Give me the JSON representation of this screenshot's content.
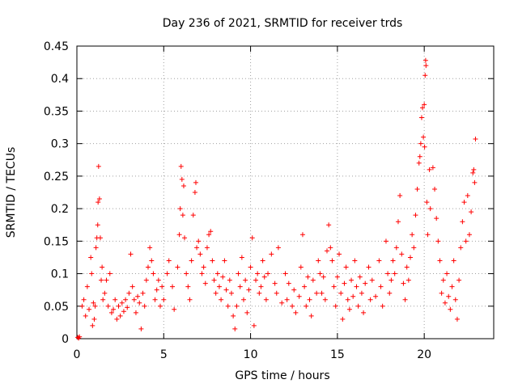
{
  "chart_data": {
    "type": "scatter",
    "title": "Day 236 of 2021, SRMTID for receiver trds",
    "xlabel": "GPS time / hours",
    "ylabel": "SRMTID / TECUs",
    "xlim": [
      0,
      24
    ],
    "ylim": [
      0,
      0.45
    ],
    "grid": true,
    "x_ticks": [
      "0",
      "5",
      "10",
      "15",
      "20"
    ],
    "y_ticks": [
      "0",
      "0.05",
      "0.1",
      "0.15",
      "0.2",
      "0.25",
      "0.3",
      "0.35",
      "0.4",
      "0.45"
    ],
    "marker": "plus",
    "color": "#ff0000",
    "series": [
      {
        "name": "trds",
        "points": [
          [
            0.05,
            0.002
          ],
          [
            0.1,
            0.001
          ],
          [
            0.15,
            0.003
          ],
          [
            0.3,
            0.05
          ],
          [
            0.4,
            0.06
          ],
          [
            0.5,
            0.035
          ],
          [
            0.6,
            0.08
          ],
          [
            0.7,
            0.045
          ],
          [
            0.8,
            0.125
          ],
          [
            0.85,
            0.1
          ],
          [
            0.9,
            0.02
          ],
          [
            0.95,
            0.055
          ],
          [
            1.0,
            0.03
          ],
          [
            1.05,
            0.05
          ],
          [
            1.1,
            0.14
          ],
          [
            1.15,
            0.155
          ],
          [
            1.2,
            0.175
          ],
          [
            1.22,
            0.21
          ],
          [
            1.25,
            0.265
          ],
          [
            1.3,
            0.215
          ],
          [
            1.35,
            0.155
          ],
          [
            1.4,
            0.09
          ],
          [
            1.45,
            0.11
          ],
          [
            1.5,
            0.06
          ],
          [
            1.6,
            0.07
          ],
          [
            1.7,
            0.09
          ],
          [
            1.8,
            0.05
          ],
          [
            1.9,
            0.1
          ],
          [
            2.0,
            0.04
          ],
          [
            2.1,
            0.045
          ],
          [
            2.2,
            0.06
          ],
          [
            2.3,
            0.03
          ],
          [
            2.4,
            0.05
          ],
          [
            2.5,
            0.035
          ],
          [
            2.6,
            0.055
          ],
          [
            2.7,
            0.042
          ],
          [
            2.8,
            0.06
          ],
          [
            2.9,
            0.048
          ],
          [
            3.0,
            0.07
          ],
          [
            3.1,
            0.13
          ],
          [
            3.2,
            0.08
          ],
          [
            3.3,
            0.06
          ],
          [
            3.4,
            0.04
          ],
          [
            3.5,
            0.065
          ],
          [
            3.6,
            0.055
          ],
          [
            3.7,
            0.015
          ],
          [
            3.8,
            0.07
          ],
          [
            3.9,
            0.05
          ],
          [
            4.0,
            0.09
          ],
          [
            4.1,
            0.11
          ],
          [
            4.2,
            0.14
          ],
          [
            4.3,
            0.12
          ],
          [
            4.4,
            0.1
          ],
          [
            4.5,
            0.06
          ],
          [
            4.6,
            0.075
          ],
          [
            4.7,
            0.09
          ],
          [
            4.8,
            0.05
          ],
          [
            4.9,
            0.08
          ],
          [
            5.0,
            0.06
          ],
          [
            5.2,
            0.1
          ],
          [
            5.3,
            0.12
          ],
          [
            5.5,
            0.08
          ],
          [
            5.6,
            0.045
          ],
          [
            5.8,
            0.11
          ],
          [
            5.9,
            0.16
          ],
          [
            5.95,
            0.2
          ],
          [
            6.0,
            0.265
          ],
          [
            6.05,
            0.245
          ],
          [
            6.1,
            0.19
          ],
          [
            6.15,
            0.235
          ],
          [
            6.2,
            0.155
          ],
          [
            6.3,
            0.1
          ],
          [
            6.4,
            0.08
          ],
          [
            6.5,
            0.06
          ],
          [
            6.6,
            0.12
          ],
          [
            6.7,
            0.19
          ],
          [
            6.8,
            0.225
          ],
          [
            6.85,
            0.24
          ],
          [
            6.9,
            0.14
          ],
          [
            7.0,
            0.15
          ],
          [
            7.1,
            0.13
          ],
          [
            7.2,
            0.1
          ],
          [
            7.3,
            0.11
          ],
          [
            7.4,
            0.085
          ],
          [
            7.5,
            0.14
          ],
          [
            7.6,
            0.16
          ],
          [
            7.7,
            0.165
          ],
          [
            7.8,
            0.12
          ],
          [
            7.9,
            0.09
          ],
          [
            8.0,
            0.07
          ],
          [
            8.1,
            0.1
          ],
          [
            8.2,
            0.08
          ],
          [
            8.3,
            0.06
          ],
          [
            8.4,
            0.095
          ],
          [
            8.5,
            0.12
          ],
          [
            8.6,
            0.075
          ],
          [
            8.7,
            0.05
          ],
          [
            8.8,
            0.09
          ],
          [
            8.9,
            0.07
          ],
          [
            9.0,
            0.035
          ],
          [
            9.1,
            0.015
          ],
          [
            9.2,
            0.05
          ],
          [
            9.3,
            0.1
          ],
          [
            9.4,
            0.08
          ],
          [
            9.5,
            0.125
          ],
          [
            9.6,
            0.06
          ],
          [
            9.7,
            0.09
          ],
          [
            9.8,
            0.04
          ],
          [
            9.9,
            0.075
          ],
          [
            10.0,
            0.11
          ],
          [
            10.1,
            0.155
          ],
          [
            10.2,
            0.02
          ],
          [
            10.3,
            0.09
          ],
          [
            10.4,
            0.1
          ],
          [
            10.5,
            0.07
          ],
          [
            10.6,
            0.08
          ],
          [
            10.7,
            0.12
          ],
          [
            10.8,
            0.095
          ],
          [
            10.9,
            0.06
          ],
          [
            11.0,
            0.1
          ],
          [
            11.2,
            0.13
          ],
          [
            11.4,
            0.085
          ],
          [
            11.5,
            0.07
          ],
          [
            11.6,
            0.14
          ],
          [
            11.8,
            0.055
          ],
          [
            12.0,
            0.1
          ],
          [
            12.1,
            0.06
          ],
          [
            12.2,
            0.085
          ],
          [
            12.4,
            0.05
          ],
          [
            12.5,
            0.075
          ],
          [
            12.6,
            0.04
          ],
          [
            12.8,
            0.065
          ],
          [
            12.9,
            0.11
          ],
          [
            13.0,
            0.16
          ],
          [
            13.1,
            0.08
          ],
          [
            13.2,
            0.05
          ],
          [
            13.3,
            0.095
          ],
          [
            13.4,
            0.06
          ],
          [
            13.5,
            0.035
          ],
          [
            13.6,
            0.09
          ],
          [
            13.8,
            0.07
          ],
          [
            13.9,
            0.12
          ],
          [
            14.0,
            0.1
          ],
          [
            14.1,
            0.07
          ],
          [
            14.2,
            0.095
          ],
          [
            14.3,
            0.06
          ],
          [
            14.4,
            0.135
          ],
          [
            14.5,
            0.175
          ],
          [
            14.6,
            0.14
          ],
          [
            14.7,
            0.12
          ],
          [
            14.8,
            0.08
          ],
          [
            14.9,
            0.05
          ],
          [
            15.0,
            0.095
          ],
          [
            15.1,
            0.13
          ],
          [
            15.2,
            0.07
          ],
          [
            15.3,
            0.03
          ],
          [
            15.4,
            0.085
          ],
          [
            15.5,
            0.11
          ],
          [
            15.6,
            0.06
          ],
          [
            15.7,
            0.045
          ],
          [
            15.8,
            0.09
          ],
          [
            15.9,
            0.065
          ],
          [
            16.0,
            0.12
          ],
          [
            16.1,
            0.08
          ],
          [
            16.2,
            0.05
          ],
          [
            16.3,
            0.095
          ],
          [
            16.4,
            0.07
          ],
          [
            16.5,
            0.04
          ],
          [
            16.6,
            0.085
          ],
          [
            16.8,
            0.11
          ],
          [
            16.9,
            0.06
          ],
          [
            17.0,
            0.09
          ],
          [
            17.2,
            0.065
          ],
          [
            17.4,
            0.12
          ],
          [
            17.5,
            0.08
          ],
          [
            17.6,
            0.05
          ],
          [
            17.8,
            0.15
          ],
          [
            17.9,
            0.1
          ],
          [
            18.0,
            0.07
          ],
          [
            18.1,
            0.09
          ],
          [
            18.2,
            0.12
          ],
          [
            18.3,
            0.1
          ],
          [
            18.4,
            0.14
          ],
          [
            18.5,
            0.18
          ],
          [
            18.6,
            0.22
          ],
          [
            18.7,
            0.13
          ],
          [
            18.8,
            0.085
          ],
          [
            18.9,
            0.06
          ],
          [
            19.0,
            0.11
          ],
          [
            19.1,
            0.09
          ],
          [
            19.2,
            0.125
          ],
          [
            19.3,
            0.16
          ],
          [
            19.4,
            0.14
          ],
          [
            19.5,
            0.19
          ],
          [
            19.6,
            0.23
          ],
          [
            19.7,
            0.27
          ],
          [
            19.75,
            0.28
          ],
          [
            19.8,
            0.3
          ],
          [
            19.85,
            0.34
          ],
          [
            19.9,
            0.355
          ],
          [
            19.95,
            0.31
          ],
          [
            20.0,
            0.36
          ],
          [
            20.02,
            0.295
          ],
          [
            20.05,
            0.405
          ],
          [
            20.08,
            0.428
          ],
          [
            20.1,
            0.42
          ],
          [
            20.15,
            0.21
          ],
          [
            20.2,
            0.16
          ],
          [
            20.3,
            0.26
          ],
          [
            20.35,
            0.2
          ],
          [
            20.5,
            0.263
          ],
          [
            20.6,
            0.23
          ],
          [
            20.7,
            0.185
          ],
          [
            20.8,
            0.15
          ],
          [
            20.9,
            0.12
          ],
          [
            21.0,
            0.07
          ],
          [
            21.1,
            0.09
          ],
          [
            21.2,
            0.055
          ],
          [
            21.3,
            0.1
          ],
          [
            21.4,
            0.065
          ],
          [
            21.5,
            0.045
          ],
          [
            21.6,
            0.08
          ],
          [
            21.7,
            0.12
          ],
          [
            21.8,
            0.06
          ],
          [
            21.9,
            0.03
          ],
          [
            22.0,
            0.09
          ],
          [
            22.1,
            0.14
          ],
          [
            22.2,
            0.18
          ],
          [
            22.3,
            0.21
          ],
          [
            22.4,
            0.15
          ],
          [
            22.5,
            0.22
          ],
          [
            22.6,
            0.16
          ],
          [
            22.7,
            0.195
          ],
          [
            22.8,
            0.255
          ],
          [
            22.85,
            0.26
          ],
          [
            22.9,
            0.24
          ],
          [
            22.95,
            0.307
          ]
        ]
      }
    ]
  }
}
